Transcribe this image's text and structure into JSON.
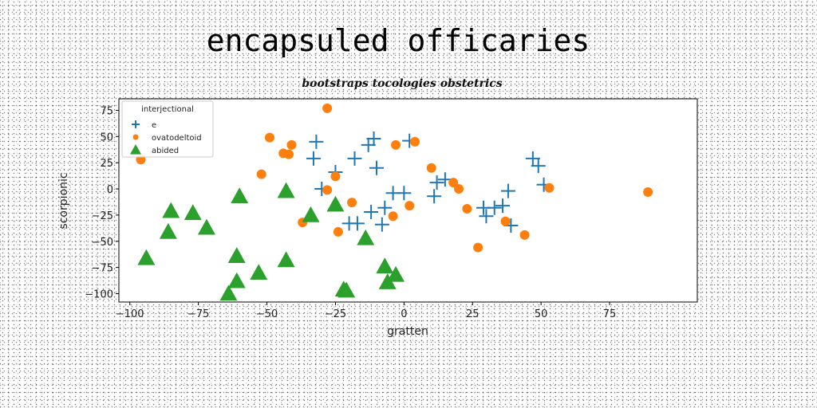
{
  "chart_data": {
    "type": "scatter",
    "title": "encapsuled officaries",
    "subtitle": "bootstraps tocologies obstetrics",
    "xlabel": "gratten",
    "ylabel": "scorpionic",
    "xlim": [
      -104,
      107
    ],
    "ylim": [
      -108,
      86
    ],
    "xticks": [
      -100,
      -75,
      -50,
      -25,
      0,
      25,
      50,
      75
    ],
    "yticks": [
      75,
      50,
      25,
      0,
      -25,
      -50,
      -75,
      -100
    ],
    "xtick_labels": [
      "−100",
      "−75",
      "−50",
      "−25",
      "0",
      "25",
      "50",
      "75"
    ],
    "ytick_labels": [
      "75",
      "50",
      "25",
      "0",
      "−25",
      "−50",
      "−75",
      "−100"
    ],
    "grid": false,
    "legend": {
      "title": "interjectional",
      "placement": "top-left"
    },
    "series": [
      {
        "name": "e",
        "marker": "plus",
        "color": "#1f77b4",
        "points": [
          [
            -32,
            45
          ],
          [
            -33,
            29
          ],
          [
            -30,
            0
          ],
          [
            -25,
            16
          ],
          [
            -18,
            29
          ],
          [
            -13,
            42
          ],
          [
            -11,
            48
          ],
          [
            -10,
            20
          ],
          [
            -20,
            -33
          ],
          [
            -17,
            -33
          ],
          [
            -12,
            -22
          ],
          [
            -7,
            -18
          ],
          [
            -8,
            -34
          ],
          [
            -4,
            -4
          ],
          [
            0,
            -4
          ],
          [
            2,
            46
          ],
          [
            11,
            -7
          ],
          [
            12,
            6
          ],
          [
            15,
            9
          ],
          [
            29,
            -18
          ],
          [
            30,
            -26
          ],
          [
            33,
            -18
          ],
          [
            36,
            -16
          ],
          [
            38,
            -2
          ],
          [
            39,
            -35
          ],
          [
            47,
            29
          ],
          [
            49,
            22
          ],
          [
            51,
            4
          ]
        ]
      },
      {
        "name": "ovatodeltoid",
        "marker": "circle",
        "color": "#ff7f0e",
        "points": [
          [
            -96,
            28
          ],
          [
            -28,
            77
          ],
          [
            -49,
            49
          ],
          [
            -41,
            42
          ],
          [
            -44,
            34
          ],
          [
            -42,
            33
          ],
          [
            -52,
            14
          ],
          [
            -25,
            12
          ],
          [
            -28,
            -1
          ],
          [
            -19,
            -13
          ],
          [
            -24,
            -41
          ],
          [
            -37,
            -32
          ],
          [
            -3,
            42
          ],
          [
            4,
            45
          ],
          [
            2,
            -16
          ],
          [
            -4,
            -26
          ],
          [
            10,
            20
          ],
          [
            18,
            6
          ],
          [
            20,
            0
          ],
          [
            23,
            -19
          ],
          [
            27,
            -56
          ],
          [
            37,
            -31
          ],
          [
            44,
            -44
          ],
          [
            53,
            1
          ],
          [
            89,
            -3
          ]
        ]
      },
      {
        "name": "abided",
        "marker": "triangle",
        "color": "#2ca02c",
        "points": [
          [
            -94,
            -66
          ],
          [
            -85,
            -21
          ],
          [
            -86,
            -41
          ],
          [
            -77,
            -23
          ],
          [
            -72,
            -37
          ],
          [
            -60,
            -7
          ],
          [
            -61,
            -64
          ],
          [
            -61,
            -88
          ],
          [
            -64,
            -100
          ],
          [
            -53,
            -80
          ],
          [
            -43,
            -2
          ],
          [
            -43,
            -68
          ],
          [
            -34,
            -25
          ],
          [
            -25,
            -15
          ],
          [
            -22,
            -96
          ],
          [
            -21,
            -97
          ],
          [
            -14,
            -47
          ],
          [
            -7,
            -74
          ],
          [
            -6,
            -89
          ],
          [
            -3,
            -82
          ]
        ]
      }
    ]
  }
}
